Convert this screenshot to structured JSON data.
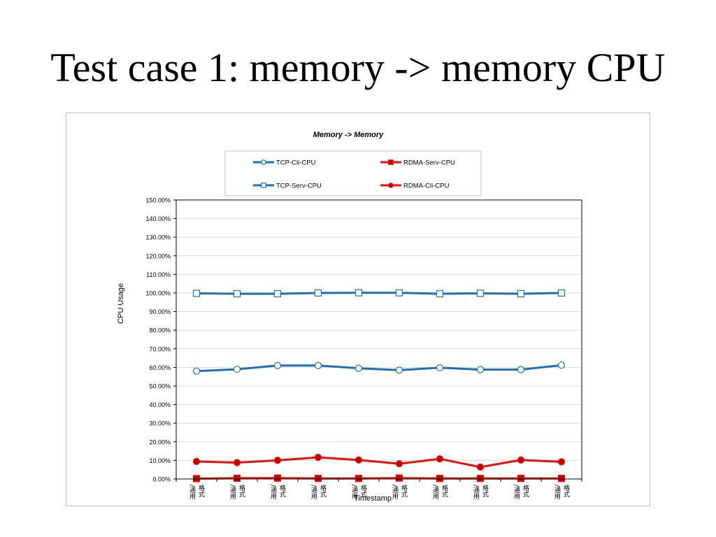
{
  "slide": {
    "title": "Test case 1: memory -> memory CPU"
  },
  "chart_data": {
    "type": "line",
    "title": "Memory -> Memory",
    "xlabel": "Timestamp",
    "ylabel": "CPU Usage",
    "ylim": [
      0,
      150
    ],
    "y_ticks": [
      "0.00%",
      "10.00%",
      "20.00%",
      "30.00%",
      "40.00%",
      "50.00%",
      "60.00%",
      "70.00%",
      "80.00%",
      "90.00%",
      "100.00%",
      "110.00%",
      "120.00%",
      "130.00%",
      "140.00%",
      "150.00%"
    ],
    "grid": true,
    "legend_position": "top-center",
    "categories": [
      [
        "/通用",
        "格式"
      ],
      [
        "/通用",
        "格式"
      ],
      [
        "/通用",
        "格式"
      ],
      [
        "/通用",
        "格式"
      ],
      [
        "/通用",
        "格式"
      ],
      [
        "/通用",
        "格式"
      ],
      [
        "/通用",
        "格式"
      ],
      [
        "/通用",
        "格式"
      ],
      [
        "/通用",
        "格式"
      ],
      [
        "/通用",
        "格式"
      ]
    ],
    "series": [
      {
        "name": "TCP-Cli-CPU",
        "color": "#1f6fb4",
        "marker": "circle",
        "marker_fill": "#ffffff",
        "values": [
          58.0,
          59.0,
          61.0,
          61.0,
          59.5,
          58.5,
          59.8,
          58.8,
          58.8,
          61.2
        ]
      },
      {
        "name": "RDMA-Serv-CPU",
        "color": "#e8100c",
        "marker": "square",
        "marker_fill": "#c00000",
        "values": [
          0.2,
          0.4,
          0.5,
          0.3,
          0.3,
          0.5,
          0.3,
          0.3,
          0.3,
          0.3
        ]
      },
      {
        "name": "TCP-Serv-CPU",
        "color": "#1f6fb4",
        "marker": "square",
        "marker_fill": "#ffffff",
        "values": [
          99.8,
          99.6,
          99.6,
          100.0,
          100.1,
          100.1,
          99.6,
          99.8,
          99.6,
          100.0
        ]
      },
      {
        "name": "RDMA-Cli-CPU",
        "color": "#e8100c",
        "marker": "circle",
        "marker_fill": "#c00000",
        "values": [
          9.4,
          8.8,
          10.0,
          11.6,
          10.2,
          8.2,
          10.8,
          6.4,
          10.2,
          9.2
        ]
      }
    ]
  }
}
